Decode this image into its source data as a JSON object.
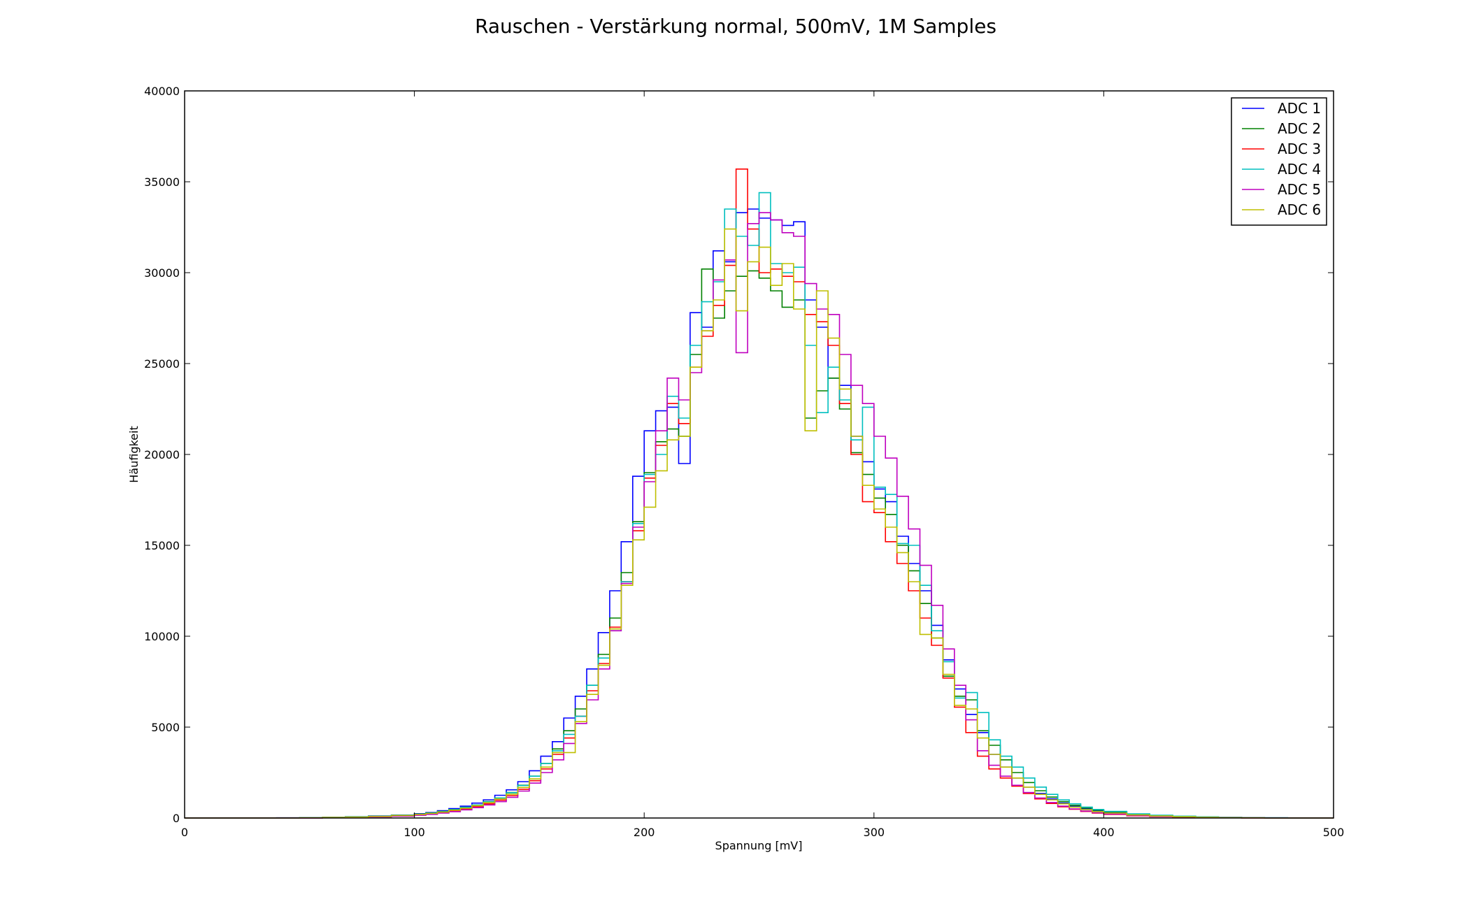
{
  "chart_data": {
    "type": "line",
    "style": "step",
    "title": "Rauschen - Verstärkung normal, 500mV, 1M Samples",
    "xlabel": "Spannung [mV]",
    "ylabel": "Häufigkeit",
    "xlim": [
      0,
      500
    ],
    "ylim": [
      0,
      40000
    ],
    "xticks": [
      0,
      100,
      200,
      300,
      400,
      500
    ],
    "yticks": [
      0,
      5000,
      10000,
      15000,
      20000,
      25000,
      30000,
      35000,
      40000
    ],
    "grid": false,
    "legend_position": "top-right",
    "x": [
      0,
      10,
      20,
      30,
      40,
      50,
      60,
      70,
      80,
      90,
      100,
      105,
      110,
      115,
      120,
      125,
      130,
      135,
      140,
      145,
      150,
      155,
      160,
      165,
      170,
      175,
      180,
      185,
      190,
      195,
      200,
      205,
      210,
      215,
      220,
      225,
      230,
      235,
      240,
      245,
      250,
      255,
      260,
      265,
      270,
      275,
      280,
      285,
      290,
      295,
      300,
      305,
      310,
      315,
      320,
      325,
      330,
      335,
      340,
      345,
      350,
      355,
      360,
      365,
      370,
      375,
      380,
      385,
      390,
      395,
      400,
      410,
      420,
      430,
      440,
      450,
      460,
      470,
      480,
      490,
      500
    ],
    "series": [
      {
        "name": "ADC 1",
        "color": "#0000ff",
        "values": [
          0,
          0,
          0,
          0,
          10,
          20,
          40,
          70,
          110,
          160,
          240,
          300,
          400,
          520,
          650,
          820,
          1000,
          1250,
          1550,
          2000,
          2600,
          3400,
          4200,
          5500,
          6700,
          8200,
          10200,
          12500,
          15200,
          18800,
          21300,
          22400,
          22600,
          19500,
          27800,
          27000,
          31200,
          30600,
          33300,
          33500,
          33000,
          32900,
          32600,
          32800,
          28500,
          27000,
          24200,
          23800,
          21000,
          19600,
          18100,
          17400,
          15500,
          14000,
          12500,
          10600,
          8700,
          7100,
          5700,
          4700,
          3500,
          2800,
          2200,
          1700,
          1350,
          1050,
          820,
          640,
          500,
          400,
          320,
          200,
          130,
          80,
          50,
          30,
          20,
          10,
          0,
          0,
          0
        ]
      },
      {
        "name": "ADC 2",
        "color": "#008000",
        "values": [
          0,
          0,
          0,
          0,
          0,
          10,
          30,
          60,
          100,
          150,
          220,
          280,
          360,
          470,
          590,
          720,
          900,
          1100,
          1400,
          1800,
          2300,
          3000,
          3800,
          4800,
          6000,
          7300,
          9000,
          11000,
          13500,
          16300,
          19000,
          20700,
          21400,
          21000,
          25500,
          30200,
          27500,
          29000,
          29800,
          30100,
          29700,
          29000,
          28100,
          28500,
          22000,
          23500,
          24200,
          22500,
          20100,
          18900,
          17600,
          16700,
          15000,
          13600,
          11800,
          9900,
          7800,
          6700,
          6500,
          4800,
          4000,
          3200,
          2500,
          1950,
          1500,
          1150,
          900,
          700,
          550,
          430,
          330,
          210,
          140,
          90,
          50,
          30,
          10,
          0,
          0,
          0,
          0
        ]
      },
      {
        "name": "ADC 3",
        "color": "#ff0000",
        "values": [
          0,
          0,
          0,
          0,
          0,
          0,
          20,
          40,
          70,
          110,
          170,
          220,
          290,
          380,
          490,
          620,
          780,
          980,
          1230,
          1580,
          2050,
          2700,
          3500,
          4400,
          5600,
          7000,
          8500,
          10500,
          13000,
          15800,
          18700,
          20500,
          22800,
          21700,
          24800,
          26500,
          28200,
          30400,
          35700,
          32400,
          30000,
          30200,
          29800,
          29500,
          27700,
          27300,
          26000,
          22800,
          20000,
          17400,
          16800,
          15200,
          14000,
          12500,
          11000,
          9500,
          7700,
          6100,
          4700,
          3400,
          2700,
          2200,
          1750,
          1350,
          1050,
          800,
          620,
          480,
          360,
          270,
          200,
          120,
          80,
          50,
          30,
          10,
          0,
          0,
          0,
          0,
          0
        ]
      },
      {
        "name": "ADC 4",
        "color": "#00bfbf",
        "values": [
          0,
          0,
          0,
          0,
          0,
          10,
          30,
          60,
          100,
          150,
          210,
          270,
          350,
          460,
          580,
          720,
          890,
          1100,
          1390,
          1790,
          2300,
          3000,
          3700,
          4600,
          5600,
          7300,
          8800,
          10300,
          13000,
          16200,
          18900,
          20000,
          23200,
          22000,
          26000,
          28400,
          29500,
          33500,
          32000,
          31500,
          34400,
          30500,
          30000,
          30300,
          26000,
          22300,
          24800,
          23000,
          20800,
          22600,
          18200,
          17800,
          15100,
          15000,
          12800,
          10300,
          8600,
          6600,
          6900,
          5800,
          4300,
          3400,
          2800,
          2200,
          1700,
          1300,
          1000,
          780,
          600,
          470,
          360,
          230,
          150,
          100,
          60,
          30,
          20,
          10,
          0,
          0,
          0
        ]
      },
      {
        "name": "ADC 5",
        "color": "#bf00bf",
        "values": [
          0,
          0,
          0,
          0,
          0,
          0,
          10,
          30,
          60,
          100,
          150,
          200,
          270,
          350,
          450,
          570,
          720,
          900,
          1140,
          1480,
          1920,
          2500,
          3200,
          4100,
          5200,
          6500,
          8200,
          10300,
          12900,
          16000,
          18500,
          21300,
          24200,
          23000,
          24500,
          26800,
          29600,
          30700,
          25600,
          32700,
          33300,
          32900,
          32200,
          32000,
          29400,
          28000,
          27700,
          25500,
          23800,
          22800,
          21000,
          19800,
          17700,
          15900,
          13900,
          11700,
          9300,
          7300,
          5400,
          3700,
          2900,
          2300,
          1800,
          1400,
          1100,
          850,
          650,
          500,
          380,
          290,
          220,
          130,
          90,
          60,
          30,
          20,
          10,
          0,
          0,
          0,
          0
        ]
      },
      {
        "name": "ADC 6",
        "color": "#bfbf00",
        "values": [
          0,
          0,
          0,
          0,
          0,
          10,
          30,
          50,
          90,
          140,
          200,
          250,
          330,
          430,
          540,
          680,
          850,
          1050,
          1310,
          1680,
          2150,
          2800,
          3600,
          3600,
          5300,
          6800,
          8400,
          10400,
          12800,
          15300,
          17100,
          19100,
          20800,
          21000,
          24800,
          26800,
          28500,
          32400,
          27900,
          30600,
          31400,
          29300,
          30500,
          28000,
          21300,
          29000,
          26400,
          23600,
          21000,
          18300,
          17000,
          16000,
          14600,
          13000,
          10100,
          9900,
          7900,
          6200,
          6000,
          4400,
          3500,
          2800,
          2200,
          1700,
          1300,
          1000,
          780,
          600,
          460,
          350,
          270,
          170,
          110,
          70,
          40,
          20,
          10,
          0,
          0,
          0,
          0
        ]
      }
    ]
  }
}
